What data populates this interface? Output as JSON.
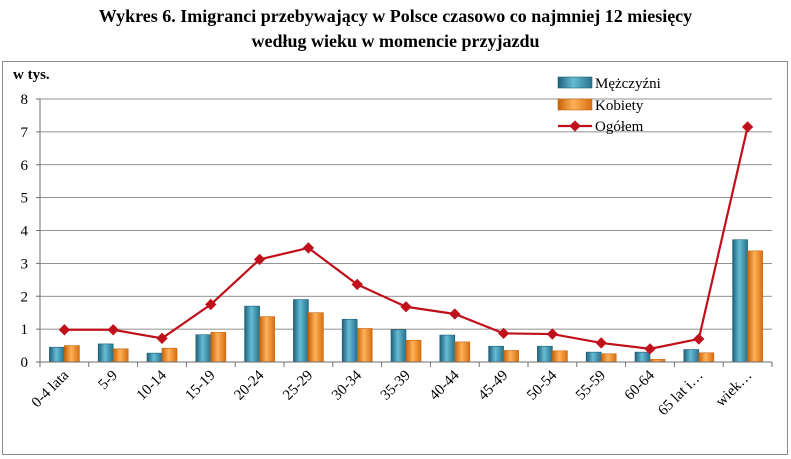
{
  "chart_data": {
    "type": "bar",
    "title_line1": "Wykres 6. Imigranci przebywający w Polsce czasowo co najmniej 12 miesięcy",
    "title_line2": "według wieku w momencie przyjazdu",
    "ylabel": "w tys.",
    "ylim": [
      0,
      8
    ],
    "yticks": [
      "0",
      "1",
      "2",
      "3",
      "4",
      "5",
      "6",
      "7",
      "8"
    ],
    "grid": true,
    "legend_position": "top-right",
    "categories": [
      "0-4 lata",
      "5-9",
      "10-14",
      "15-19",
      "20-24",
      "25-29",
      "30-34",
      "35-39",
      "40-44",
      "45-49",
      "50-54",
      "55-59",
      "60-64",
      "65 lat i…",
      "wiek…"
    ],
    "series": [
      {
        "name": "Mężczyźni",
        "kind": "bar",
        "color": "#3a8ea8",
        "values": [
          0.45,
          0.55,
          0.27,
          0.83,
          1.7,
          1.9,
          1.3,
          0.98,
          0.82,
          0.48,
          0.48,
          0.3,
          0.3,
          0.38,
          3.72
        ]
      },
      {
        "name": "Kobiety",
        "kind": "bar",
        "color": "#f0841c",
        "values": [
          0.5,
          0.4,
          0.42,
          0.9,
          1.38,
          1.5,
          1.02,
          0.66,
          0.61,
          0.35,
          0.34,
          0.25,
          0.08,
          0.28,
          3.38
        ]
      },
      {
        "name": "Ogółem",
        "kind": "line",
        "color": "#c0101c",
        "values": [
          0.98,
          0.98,
          0.72,
          1.75,
          3.12,
          3.47,
          2.36,
          1.68,
          1.46,
          0.87,
          0.85,
          0.58,
          0.4,
          0.7,
          7.15
        ]
      }
    ]
  }
}
